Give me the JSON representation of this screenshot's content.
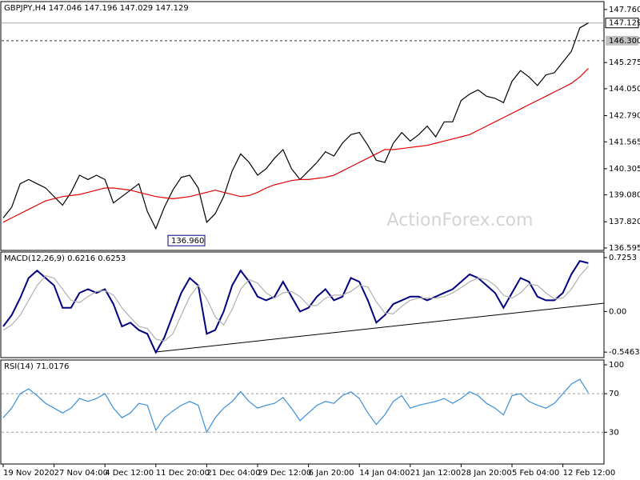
{
  "chart_data": [
    {
      "type": "line",
      "title": "GBPJPY,H4 147.046 147.196 147.029 147.129",
      "watermark": "ActionForex.com",
      "categories": [
        "19 Nov 2020",
        null,
        null,
        null,
        null,
        null,
        "27 Nov 04:00",
        null,
        null,
        null,
        null,
        null,
        "4 Dec 12:00",
        null,
        null,
        null,
        null,
        null,
        "11 Dec 20:00",
        null,
        null,
        null,
        null,
        null,
        "21 Dec 04:00",
        null,
        null,
        null,
        null,
        null,
        "29 Dec 12:00",
        null,
        null,
        null,
        null,
        null,
        "6 Jan 20:00",
        null,
        null,
        null,
        null,
        null,
        "14 Jan 04:00",
        null,
        null,
        null,
        null,
        null,
        "21 Jan 12:00",
        null,
        null,
        null,
        null,
        null,
        "28 Jan 20:00",
        null,
        null,
        null,
        null,
        null,
        "5 Feb 04:00",
        null,
        null,
        null,
        null,
        null,
        "12 Feb 12:00",
        null,
        null,
        null
      ],
      "series": [
        {
          "color": "#000000",
          "values": [
            138.0,
            138.5,
            139.6,
            139.8,
            139.6,
            139.4,
            139.0,
            138.6,
            139.2,
            140.0,
            139.8,
            140.0,
            139.8,
            138.7,
            139.0,
            139.3,
            139.6,
            138.3,
            137.5,
            138.5,
            139.3,
            139.9,
            140.0,
            139.4,
            137.8,
            138.2,
            139.0,
            140.2,
            141.0,
            140.6,
            140.0,
            140.3,
            140.8,
            141.2,
            140.3,
            139.8,
            140.2,
            140.6,
            141.1,
            140.9,
            141.5,
            141.9,
            142.0,
            141.4,
            140.7,
            140.6,
            141.5,
            142.0,
            141.6,
            141.9,
            142.3,
            141.8,
            142.5,
            142.5,
            143.5,
            143.8,
            144.0,
            143.7,
            143.6,
            143.4,
            144.4,
            144.9,
            144.6,
            144.2,
            144.7,
            144.8,
            145.3,
            145.8,
            146.9,
            147.13
          ]
        },
        {
          "color": "#e00000",
          "values": [
            137.8,
            138.0,
            138.2,
            138.4,
            138.6,
            138.8,
            138.9,
            139.0,
            139.05,
            139.1,
            139.2,
            139.3,
            139.4,
            139.4,
            139.35,
            139.3,
            139.2,
            139.1,
            139.0,
            138.95,
            138.9,
            138.95,
            139.0,
            139.1,
            139.2,
            139.3,
            139.2,
            139.1,
            139.0,
            139.05,
            139.2,
            139.4,
            139.55,
            139.65,
            139.75,
            139.8,
            139.8,
            139.85,
            139.9,
            140.0,
            140.2,
            140.4,
            140.6,
            140.8,
            141.0,
            141.2,
            141.2,
            141.25,
            141.3,
            141.35,
            141.4,
            141.5,
            141.6,
            141.7,
            141.8,
            141.9,
            142.1,
            142.3,
            142.5,
            142.7,
            142.9,
            143.1,
            143.3,
            143.5,
            143.7,
            143.9,
            144.1,
            144.3,
            144.6,
            145.0
          ]
        }
      ],
      "ylim": [
        136.48,
        148.13
      ],
      "yticks": [
        {
          "value": 147.76,
          "label": "147.760"
        },
        145.275,
        {
          "value": 144.05,
          "label": "144.050"
        },
        {
          "value": 142.79,
          "label": "142.790"
        },
        141.565,
        140.305,
        {
          "value": 139.08,
          "label": "139.080"
        },
        {
          "value": 137.82,
          "label": "137.820"
        },
        136.595
      ],
      "current_price": {
        "value": 147.129,
        "label": "147.129"
      },
      "level": {
        "value": 146.3,
        "label": "146.300"
      },
      "annotation": {
        "value": 136.96,
        "label": "136.960"
      }
    },
    {
      "type": "line",
      "title": "MACD(12,26,9) 0.6216 0.6253",
      "series": [
        {
          "color": "#000080",
          "values": [
            -0.2,
            -0.05,
            0.18,
            0.45,
            0.55,
            0.45,
            0.35,
            0.05,
            0.05,
            0.25,
            0.3,
            0.25,
            0.3,
            0.1,
            -0.2,
            -0.15,
            -0.25,
            -0.3,
            -0.55,
            -0.35,
            -0.05,
            0.25,
            0.45,
            0.35,
            -0.3,
            -0.25,
            0.0,
            0.35,
            0.55,
            0.4,
            0.2,
            0.15,
            0.2,
            0.4,
            0.2,
            0.0,
            0.05,
            0.2,
            0.3,
            0.15,
            0.2,
            0.45,
            0.4,
            0.15,
            -0.15,
            -0.05,
            0.1,
            0.15,
            0.2,
            0.2,
            0.15,
            0.2,
            0.25,
            0.3,
            0.4,
            0.5,
            0.45,
            0.35,
            0.25,
            0.05,
            0.25,
            0.45,
            0.4,
            0.2,
            0.15,
            0.15,
            0.25,
            0.5,
            0.68,
            0.65
          ]
        },
        {
          "color": "#b0b0b0",
          "values": [
            -0.25,
            -0.18,
            -0.05,
            0.15,
            0.35,
            0.48,
            0.45,
            0.3,
            0.15,
            0.12,
            0.2,
            0.27,
            0.28,
            0.22,
            0.05,
            -0.08,
            -0.2,
            -0.23,
            -0.37,
            -0.4,
            -0.3,
            -0.05,
            0.2,
            0.35,
            0.17,
            -0.07,
            -0.18,
            0.03,
            0.3,
            0.43,
            0.38,
            0.25,
            0.18,
            0.25,
            0.27,
            0.2,
            0.08,
            0.08,
            0.18,
            0.22,
            0.22,
            0.27,
            0.35,
            0.33,
            0.13,
            -0.02,
            -0.03,
            0.07,
            0.15,
            0.18,
            0.18,
            0.18,
            0.2,
            0.25,
            0.32,
            0.4,
            0.45,
            0.43,
            0.35,
            0.22,
            0.18,
            0.25,
            0.37,
            0.35,
            0.25,
            0.17,
            0.18,
            0.3,
            0.48,
            0.61
          ]
        }
      ],
      "ylim": [
        -0.62,
        0.8
      ],
      "yticks": [
        0.7253,
        {
          "value": 0,
          "label": "0.00"
        },
        -0.5463
      ]
    },
    {
      "type": "line",
      "title": "RSI(14) 71.0176",
      "series": [
        {
          "color": "#3a8fd8",
          "values": [
            45,
            55,
            70,
            75,
            68,
            60,
            55,
            50,
            55,
            65,
            62,
            65,
            70,
            55,
            45,
            50,
            60,
            58,
            32,
            45,
            52,
            58,
            62,
            58,
            30,
            45,
            55,
            62,
            72,
            62,
            55,
            58,
            60,
            66,
            55,
            42,
            50,
            58,
            62,
            60,
            68,
            72,
            65,
            50,
            38,
            48,
            62,
            68,
            55,
            58,
            60,
            62,
            65,
            60,
            65,
            72,
            68,
            60,
            55,
            48,
            68,
            70,
            62,
            58,
            55,
            60,
            70,
            80,
            85,
            71
          ]
        }
      ],
      "ylim": [
        -3,
        105
      ],
      "yticks": [
        30,
        70,
        100
      ],
      "levels": [
        30,
        70
      ]
    }
  ]
}
